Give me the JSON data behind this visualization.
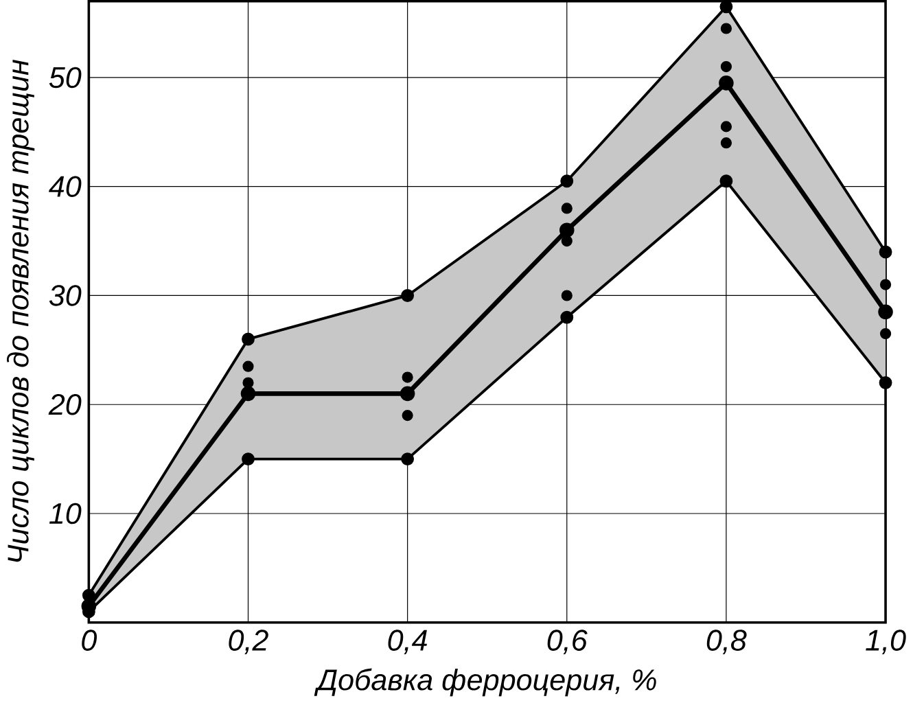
{
  "chart_data": {
    "type": "line",
    "xlabel": "Добавка ферроцерия, %",
    "ylabel": "Число циклов до появления трещин",
    "categories": [
      "0",
      "0,2",
      "0,4",
      "0,6",
      "0,8",
      "1,0"
    ],
    "series": [
      {
        "color": "#000000",
        "values": [
          1.5,
          21,
          21,
          36,
          49.5,
          28.5
        ],
        "lower": [
          1,
          15,
          15,
          28,
          40.5,
          22
        ],
        "upper": [
          2.5,
          26,
          30,
          40.5,
          56.5,
          34
        ]
      },
      {
        "color": "#000000",
        "values": [
          2.5,
          26,
          30,
          40.5,
          56.5,
          34
        ]
      },
      {
        "color": "#000000",
        "values": [
          1,
          15,
          15,
          28,
          40.5,
          22
        ]
      },
      {
        "type": "scatter",
        "color": "#000000",
        "x": [
          "0,2",
          "0,2",
          "0,4",
          "0,4",
          "0,6",
          "0,6",
          "0,6",
          "0,8",
          "0,8",
          "0,8",
          "0,8",
          "1,0",
          "1,0"
        ],
        "values": [
          23.5,
          22,
          22.5,
          19,
          38,
          35,
          30,
          54.5,
          51,
          45.5,
          44,
          31,
          26.5
        ]
      }
    ],
    "ylim": [
      0,
      57
    ],
    "yticks": [
      10,
      20,
      30,
      40,
      50
    ],
    "grid": true,
    "marker": "circle",
    "line_style": "solid"
  }
}
